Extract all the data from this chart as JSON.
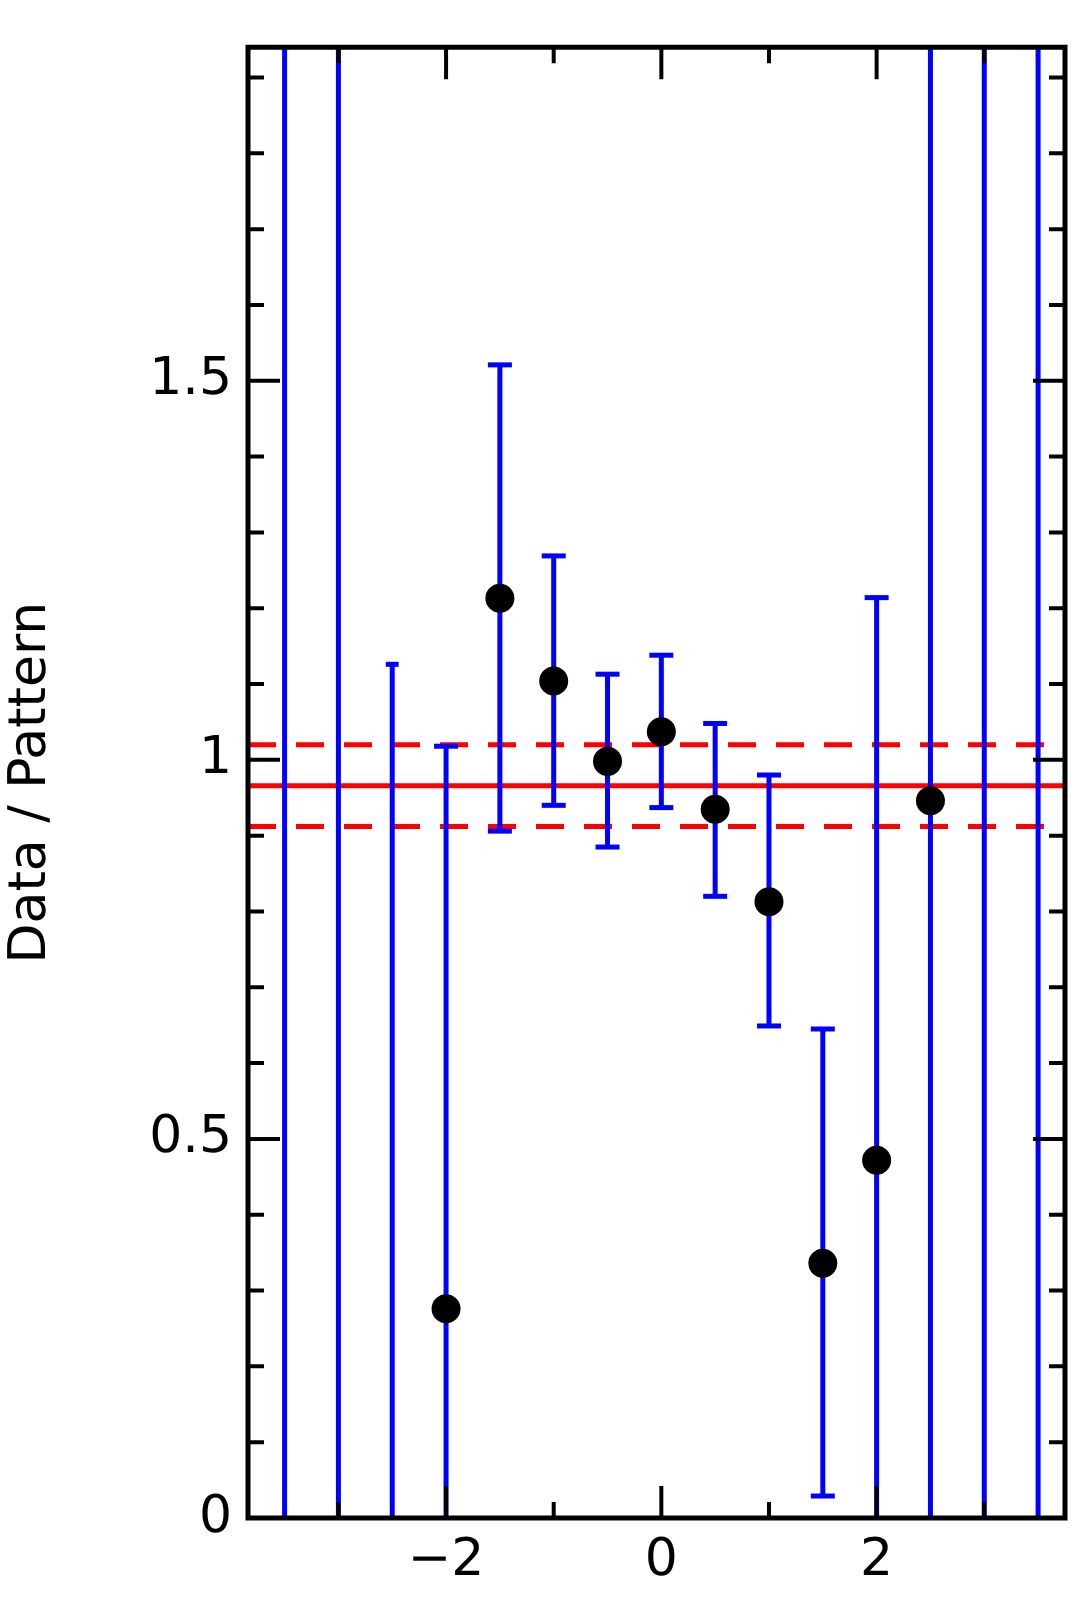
{
  "chart_data": {
    "type": "scatter",
    "ylabel": "Data / Pattern",
    "x": [
      -2,
      -1.5,
      -1,
      -0.5,
      0,
      0.5,
      1,
      1.5,
      2,
      2.5
    ],
    "series": [
      {
        "color": "#000000",
        "values": [
          0.276,
          1.213,
          1.104,
          0.998,
          1.037,
          0.935,
          0.813,
          0.336,
          0.472,
          0.946
        ],
        "errors": [
          [
            0,
            1.018
          ],
          [
            0.906,
            1.521
          ],
          [
            0.94,
            1.269
          ],
          [
            0.885,
            1.113
          ],
          [
            0.937,
            1.138
          ],
          [
            0.82,
            1.048
          ],
          [
            0.649,
            0.98
          ],
          [
            0.029,
            0.645
          ],
          [
            0,
            1.214
          ],
          [
            0,
            1.94
          ]
        ]
      },
      {
        "type": "line",
        "color": "#0000ff",
        "marker": "none",
        "x": [
          -2.5,
          -2.5
        ],
        "values": [
          0,
          1.126
        ]
      },
      {
        "type": "line",
        "color": "#0000ff",
        "marker": "none",
        "x": [
          -2.56,
          -2.44
        ],
        "values": [
          1.126,
          1.126
        ]
      }
    ],
    "xlim": [
      -3.84,
      3.75
    ],
    "ylim": [
      0,
      1.94
    ],
    "xticks": [
      {
        "value": -3,
        "label": null
      },
      -2,
      {
        "value": -1,
        "label": null
      },
      0,
      {
        "value": 1,
        "label": null
      },
      2,
      {
        "value": 3,
        "label": null
      }
    ],
    "yticks": [
      0,
      {
        "value": 0.1,
        "label": null
      },
      {
        "value": 0.2,
        "label": null
      },
      {
        "value": 0.3,
        "label": null
      },
      {
        "value": 0.4,
        "label": null
      },
      0.5,
      {
        "value": 0.6,
        "label": null
      },
      {
        "value": 0.7,
        "label": null
      },
      {
        "value": 0.8,
        "label": null
      },
      {
        "value": 0.9,
        "label": null
      },
      1,
      {
        "value": 1.1,
        "label": null
      },
      {
        "value": 1.2,
        "label": null
      },
      {
        "value": 1.3,
        "label": null
      },
      {
        "value": 1.4,
        "label": null
      },
      1.5,
      {
        "value": 1.6,
        "label": null
      },
      {
        "value": 1.7,
        "label": null
      },
      {
        "value": 1.8,
        "label": null
      },
      {
        "value": 1.9,
        "label": null
      }
    ],
    "ref_lines": [
      {
        "axis": "y",
        "value": 0.966,
        "color": "#ff0000",
        "line_style": "solid"
      },
      {
        "axis": "y",
        "value": 1.02,
        "color": "#ff0000",
        "line_style": "dashed"
      },
      {
        "axis": "y",
        "value": 0.912,
        "color": "#ff0000",
        "line_style": "dashed"
      },
      {
        "axis": "x",
        "value": -3.5,
        "color": "#0000ff",
        "line_style": "solid"
      },
      {
        "axis": "x",
        "value": -3,
        "color": "#0000ff",
        "line_style": "solid"
      },
      {
        "axis": "x",
        "value": 3,
        "color": "#0000ff",
        "line_style": "solid"
      },
      {
        "axis": "x",
        "value": 3.5,
        "color": "#0000ff",
        "line_style": "solid"
      }
    ],
    "marker": "circle",
    "legend": false
  }
}
